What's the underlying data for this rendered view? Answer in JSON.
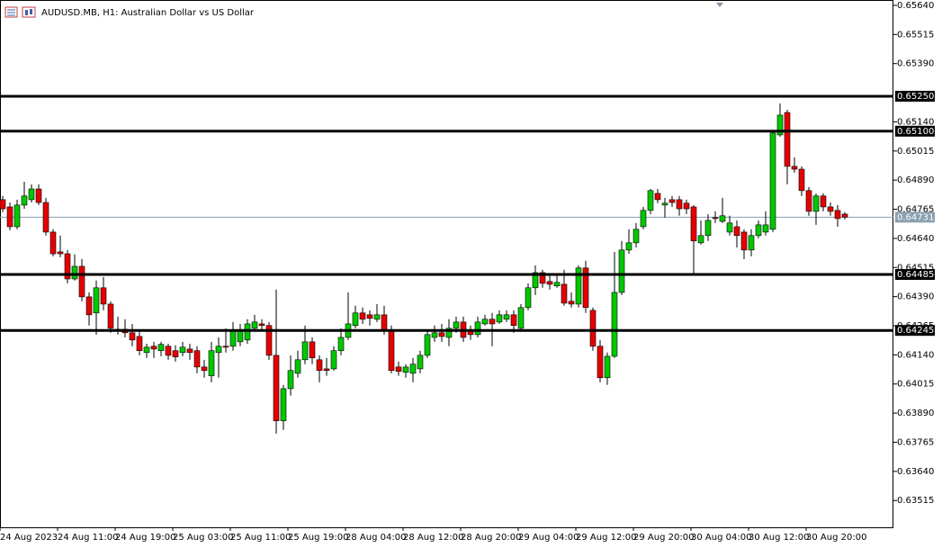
{
  "chart_data": {
    "type": "candlestick",
    "title": "AUDUSD.MB, H1:  Australian Dollar vs US Dollar",
    "categories": [
      "24 Aug 2023",
      null,
      null,
      null,
      null,
      null,
      null,
      null,
      "24 Aug 11:00",
      null,
      null,
      null,
      null,
      null,
      null,
      null,
      "24 Aug 19:00",
      null,
      null,
      null,
      null,
      null,
      null,
      null,
      "25 Aug 03:00",
      null,
      null,
      null,
      null,
      null,
      null,
      null,
      "25 Aug 11:00",
      null,
      null,
      null,
      null,
      null,
      null,
      null,
      "25 Aug 19:00",
      null,
      null,
      null,
      null,
      null,
      null,
      null,
      "28 Aug 04:00",
      null,
      null,
      null,
      null,
      null,
      null,
      null,
      "28 Aug 12:00",
      null,
      null,
      null,
      null,
      null,
      null,
      null,
      "28 Aug 20:00",
      null,
      null,
      null,
      null,
      null,
      null,
      null,
      "29 Aug 04:00",
      null,
      null,
      null,
      null,
      null,
      null,
      null,
      "29 Aug 12:00",
      null,
      null,
      null,
      null,
      null,
      null,
      null,
      "29 Aug 20:00",
      null,
      null,
      null,
      null,
      null,
      null,
      null,
      "30 Aug 04:00",
      null,
      null,
      null,
      null,
      null,
      null,
      null,
      "30 Aug 12:00",
      null,
      null,
      null,
      null,
      null,
      null,
      null,
      "30 Aug 20:00",
      null,
      null,
      null,
      null,
      null
    ],
    "open": [
      0.64806,
      0.64775,
      0.6469,
      0.64783,
      0.64806,
      0.64852,
      0.64794,
      0.64667,
      0.64582,
      0.64574,
      0.64466,
      0.6452,
      0.64389,
      0.6432,
      0.64428,
      0.64358,
      0.64246,
      0.6425,
      0.64235,
      0.64219,
      0.6415,
      0.64177,
      0.64158,
      0.64177,
      0.64158,
      0.6415,
      0.64165,
      0.64158,
      0.64088,
      0.6405,
      0.6415,
      0.64177,
      0.64177,
      0.64196,
      0.64204,
      0.64254,
      0.64273,
      0.64266,
      0.64138,
      0.63857,
      0.63995,
      0.64061,
      0.64119,
      0.64196,
      0.64119,
      0.6408,
      0.6408,
      0.64158,
      0.64215,
      0.64266,
      0.6432,
      0.64312,
      0.64293,
      0.64312,
      0.64243,
      0.64088,
      0.64065,
      0.64061,
      0.6408,
      0.64138,
      0.64215,
      0.64235,
      0.64215,
      0.64254,
      0.64281,
      0.64243,
      0.64227,
      0.64273,
      0.64293,
      0.64281,
      0.64293,
      0.64312,
      0.64254,
      0.64343,
      0.64428,
      0.64493,
      0.64455,
      0.64436,
      0.64443,
      0.6437,
      0.64358,
      0.64513,
      0.64331,
      0.64177,
      0.64042,
      0.64134,
      0.64408,
      0.6459,
      0.64621,
      0.6469,
      0.6476,
      0.64833,
      0.64783,
      0.64806,
      0.64806,
      0.64791,
      0.64775,
      0.64621,
      0.64652,
      0.64729,
      0.64713,
      0.64667,
      0.6469,
      0.64667,
      0.6459,
      0.64652,
      0.64667,
      0.64679,
      0.65084,
      0.6518,
      0.64949,
      0.64937,
      0.64845,
      0.64756,
      0.64822,
      0.64775,
      0.6476,
      0.64744
    ],
    "high": [
      0.64822,
      0.64794,
      0.64806,
      0.64883,
      0.64872,
      0.64872,
      0.64814,
      0.64679,
      0.64652,
      0.6459,
      0.64571,
      0.64551,
      0.64408,
      0.64459,
      0.64474,
      0.6437,
      0.64304,
      0.64293,
      0.64273,
      0.64243,
      0.64188,
      0.64196,
      0.64196,
      0.64188,
      0.64181,
      0.64196,
      0.64188,
      0.64177,
      0.64119,
      0.64196,
      0.64215,
      0.64254,
      0.64281,
      0.64273,
      0.64293,
      0.64312,
      0.64293,
      0.64281,
      0.6442,
      0.64011,
      0.64138,
      0.64158,
      0.64266,
      0.64215,
      0.64138,
      0.64127,
      0.64177,
      0.64254,
      0.64408,
      0.64351,
      0.64343,
      0.64331,
      0.64358,
      0.64351,
      0.64266,
      0.64111,
      0.641,
      0.64127,
      0.64158,
      0.64243,
      0.64266,
      0.64273,
      0.64293,
      0.64304,
      0.64304,
      0.64266,
      0.64304,
      0.64312,
      0.6432,
      0.64331,
      0.64331,
      0.64331,
      0.64358,
      0.64447,
      0.64524,
      0.64505,
      0.64486,
      0.64486,
      0.64505,
      0.64408,
      0.64524,
      0.64544,
      0.64343,
      0.64204,
      0.6415,
      0.64582,
      0.64629,
      0.64679,
      0.64706,
      0.64775,
      0.64852,
      0.64852,
      0.64814,
      0.64822,
      0.64822,
      0.64806,
      0.64783,
      0.64717,
      0.64744,
      0.64756,
      0.64814,
      0.64737,
      0.64717,
      0.64679,
      0.64679,
      0.64717,
      0.64756,
      0.65103,
      0.65219,
      0.65192,
      0.64987,
      0.64949,
      0.6486,
      0.64833,
      0.64833,
      0.64794,
      0.64783,
      0.64752
    ],
    "low": [
      0.64752,
      0.64675,
      0.64679,
      0.64767,
      0.64794,
      0.64783,
      0.64652,
      0.64563,
      0.64559,
      0.64447,
      0.64459,
      0.6437,
      0.64266,
      0.64227,
      0.64331,
      0.64235,
      0.64227,
      0.64215,
      0.64177,
      0.64138,
      0.64127,
      0.64127,
      0.64134,
      0.64119,
      0.64111,
      0.64134,
      0.64119,
      0.64061,
      0.64042,
      0.64022,
      0.64042,
      0.6415,
      0.64158,
      0.64177,
      0.64188,
      0.64243,
      0.64243,
      0.64119,
      0.63802,
      0.63818,
      0.63965,
      0.64042,
      0.641,
      0.641,
      0.64022,
      0.6405,
      0.64073,
      0.64138,
      0.64204,
      0.64254,
      0.64273,
      0.64266,
      0.64281,
      0.64227,
      0.64061,
      0.6405,
      0.64042,
      0.64022,
      0.64061,
      0.64127,
      0.64196,
      0.64196,
      0.64177,
      0.64235,
      0.64196,
      0.64204,
      0.64215,
      0.64266,
      0.64177,
      0.64273,
      0.64281,
      0.64235,
      0.64243,
      0.64331,
      0.64397,
      0.64428,
      0.6442,
      0.64428,
      0.64351,
      0.64343,
      0.64343,
      0.6432,
      0.64158,
      0.64022,
      0.64011,
      0.64127,
      0.64397,
      0.64574,
      0.64601,
      0.64679,
      0.64744,
      0.64791,
      0.64729,
      0.64775,
      0.64737,
      0.64744,
      0.6449,
      0.64613,
      0.64629,
      0.64706,
      0.64706,
      0.64652,
      0.64601,
      0.64551,
      0.64563,
      0.6464,
      0.64652,
      0.64667,
      0.65076,
      0.64872,
      0.64922,
      0.64822,
      0.64737,
      0.64698,
      0.64756,
      0.64737,
      0.6469,
      0.64721
    ],
    "close": [
      0.64767,
      0.6469,
      0.64783,
      0.64822,
      0.64852,
      0.64794,
      0.64667,
      0.64574,
      0.64574,
      0.64466,
      0.6452,
      0.64389,
      0.64312,
      0.64428,
      0.64358,
      0.64254,
      0.6425,
      0.64235,
      0.64204,
      0.64158,
      0.64173,
      0.64165,
      0.64185,
      0.64138,
      0.64131,
      0.64173,
      0.6415,
      0.64088,
      0.64073,
      0.64158,
      0.64177,
      0.64173,
      0.64243,
      0.64243,
      0.64273,
      0.64281,
      0.64266,
      0.64138,
      0.63857,
      0.63995,
      0.64073,
      0.64119,
      0.64196,
      0.64127,
      0.64073,
      0.64073,
      0.64158,
      0.64215,
      0.64273,
      0.6432,
      0.64293,
      0.64297,
      0.64312,
      0.64243,
      0.64073,
      0.64069,
      0.64088,
      0.641,
      0.64138,
      0.64227,
      0.64235,
      0.64219,
      0.64254,
      0.64281,
      0.64215,
      0.64227,
      0.64281,
      0.64293,
      0.64273,
      0.64312,
      0.64312,
      0.64266,
      0.64343,
      0.64428,
      0.64493,
      0.64447,
      0.64443,
      0.64451,
      0.64362,
      0.64358,
      0.64513,
      0.64343,
      0.64177,
      0.64042,
      0.64134,
      0.64408,
      0.6459,
      0.64621,
      0.64679,
      0.6476,
      0.64845,
      0.64806,
      0.64791,
      0.64794,
      0.64767,
      0.64767,
      0.64629,
      0.64652,
      0.64717,
      0.64725,
      0.64737,
      0.64706,
      0.64652,
      0.6459,
      0.64652,
      0.64698,
      0.64698,
      0.65092,
      0.65169,
      0.64949,
      0.64937,
      0.64845,
      0.64756,
      0.64822,
      0.64775,
      0.64756,
      0.64725,
      0.64731
    ],
    "up_color": "#00c800",
    "down_color": "#e60000",
    "ylim": [
      0.634,
      0.65663
    ],
    "yticks": [
      {
        "value": 0.6564,
        "label": "0.65640"
      },
      0.65515,
      {
        "value": 0.6539,
        "label": "0.65390"
      },
      {
        "value": 0.6514,
        "label": "0.65140"
      },
      0.65015,
      {
        "value": 0.6489,
        "label": "0.64890"
      },
      0.64765,
      {
        "value": 0.6464,
        "label": "0.64640"
      },
      0.64515,
      {
        "value": 0.6439,
        "label": "0.64390"
      },
      0.64265,
      {
        "value": 0.6414,
        "label": "0.64140"
      },
      0.64015,
      {
        "value": 0.6389,
        "label": "0.63890"
      },
      0.63765,
      {
        "value": 0.6364,
        "label": "0.63640"
      },
      0.63515
    ],
    "levels": [
      {
        "value": 0.6525,
        "label": "0.65250"
      },
      {
        "value": 0.651,
        "label": "0.65100"
      },
      0.64485,
      0.64245
    ],
    "last_price": 0.64731,
    "grid": false
  }
}
